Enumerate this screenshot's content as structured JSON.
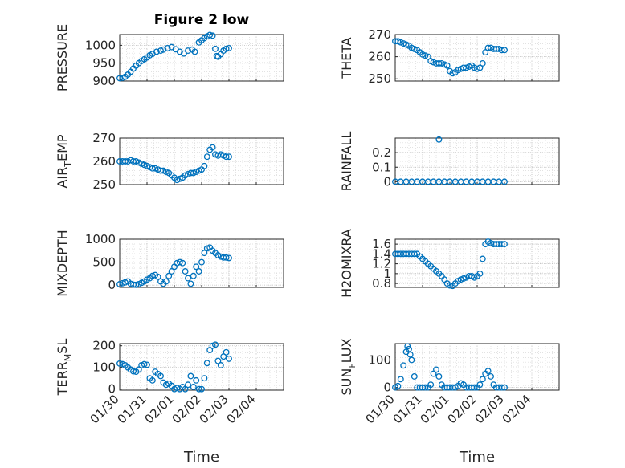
{
  "figure": {
    "title": "Figure 2 low",
    "xlabel": "Time",
    "x_ticks": [
      "01/30",
      "01/31",
      "02/01",
      "02/02",
      "02/03",
      "02/04"
    ],
    "marker_color": "#0072BD"
  },
  "chart_data": [
    {
      "type": "scatter",
      "ylabel": "PRESSURE",
      "ylim": [
        900,
        1030
      ],
      "y_ticks": [
        "900",
        "950",
        "1000"
      ],
      "x_range_days": [
        0,
        6
      ],
      "grid": true,
      "points": [
        [
          0.0,
          908
        ],
        [
          0.1,
          909
        ],
        [
          0.2,
          912
        ],
        [
          0.3,
          918
        ],
        [
          0.4,
          926
        ],
        [
          0.5,
          935
        ],
        [
          0.6,
          943
        ],
        [
          0.7,
          950
        ],
        [
          0.8,
          956
        ],
        [
          0.9,
          961
        ],
        [
          1.0,
          966
        ],
        [
          1.1,
          972
        ],
        [
          1.2,
          976
        ],
        [
          1.35,
          982
        ],
        [
          1.5,
          985
        ],
        [
          1.6,
          988
        ],
        [
          1.75,
          992
        ],
        [
          1.9,
          995
        ],
        [
          2.05,
          989
        ],
        [
          2.2,
          982
        ],
        [
          2.35,
          977
        ],
        [
          2.5,
          985
        ],
        [
          2.65,
          988
        ],
        [
          2.75,
          982
        ],
        [
          2.9,
          1008
        ],
        [
          3.0,
          1014
        ],
        [
          3.1,
          1020
        ],
        [
          3.2,
          1025
        ],
        [
          3.3,
          1029
        ],
        [
          3.4,
          1027
        ],
        [
          3.5,
          990
        ],
        [
          3.55,
          970
        ],
        [
          3.6,
          968
        ],
        [
          3.7,
          975
        ],
        [
          3.8,
          985
        ],
        [
          3.9,
          990
        ],
        [
          4.0,
          992
        ]
      ]
    },
    {
      "type": "scatter",
      "ylabel": "THETA",
      "ylim": [
        249,
        270
      ],
      "y_ticks": [
        "250",
        "260",
        "270"
      ],
      "x_range_days": [
        0,
        6
      ],
      "grid": true,
      "points": [
        [
          0.0,
          267
        ],
        [
          0.1,
          267
        ],
        [
          0.2,
          266.5
        ],
        [
          0.3,
          266
        ],
        [
          0.4,
          265.5
        ],
        [
          0.5,
          265
        ],
        [
          0.6,
          264
        ],
        [
          0.7,
          263.5
        ],
        [
          0.8,
          263
        ],
        [
          0.9,
          262
        ],
        [
          1.0,
          261
        ],
        [
          1.1,
          260.5
        ],
        [
          1.2,
          260
        ],
        [
          1.3,
          258
        ],
        [
          1.4,
          257.5
        ],
        [
          1.5,
          257
        ],
        [
          1.6,
          257
        ],
        [
          1.7,
          257
        ],
        [
          1.8,
          256.5
        ],
        [
          1.9,
          256
        ],
        [
          2.0,
          253.5
        ],
        [
          2.1,
          252.5
        ],
        [
          2.2,
          253
        ],
        [
          2.3,
          254
        ],
        [
          2.4,
          254.5
        ],
        [
          2.5,
          255
        ],
        [
          2.6,
          255
        ],
        [
          2.7,
          255.5
        ],
        [
          2.8,
          256
        ],
        [
          2.9,
          255
        ],
        [
          3.0,
          254.5
        ],
        [
          3.1,
          255
        ],
        [
          3.2,
          257
        ],
        [
          3.3,
          262
        ],
        [
          3.4,
          264
        ],
        [
          3.5,
          264
        ],
        [
          3.6,
          263.5
        ],
        [
          3.7,
          263.5
        ],
        [
          3.8,
          263.5
        ],
        [
          3.9,
          263
        ],
        [
          4.0,
          263
        ]
      ]
    },
    {
      "type": "scatter",
      "ylabel": "AIR",
      "ylabel_sub": "T",
      "ylabel_tail": "EMP",
      "ylim": [
        250,
        270
      ],
      "y_ticks": [
        "250",
        "260",
        "270"
      ],
      "x_range_days": [
        0,
        6
      ],
      "grid": true,
      "points": [
        [
          0.0,
          260
        ],
        [
          0.1,
          260
        ],
        [
          0.2,
          260
        ],
        [
          0.3,
          260
        ],
        [
          0.4,
          260.5
        ],
        [
          0.5,
          260
        ],
        [
          0.6,
          260
        ],
        [
          0.7,
          259.5
        ],
        [
          0.8,
          259
        ],
        [
          0.9,
          258.5
        ],
        [
          1.0,
          258
        ],
        [
          1.1,
          257.5
        ],
        [
          1.2,
          257
        ],
        [
          1.3,
          257
        ],
        [
          1.4,
          256.5
        ],
        [
          1.5,
          256
        ],
        [
          1.6,
          256
        ],
        [
          1.7,
          255.5
        ],
        [
          1.8,
          255
        ],
        [
          1.9,
          254
        ],
        [
          2.0,
          253
        ],
        [
          2.1,
          252
        ],
        [
          2.2,
          252.5
        ],
        [
          2.3,
          253
        ],
        [
          2.4,
          254
        ],
        [
          2.5,
          254.5
        ],
        [
          2.6,
          255
        ],
        [
          2.7,
          255
        ],
        [
          2.8,
          255.5
        ],
        [
          2.9,
          256
        ],
        [
          3.0,
          256.5
        ],
        [
          3.1,
          258
        ],
        [
          3.2,
          262
        ],
        [
          3.3,
          265
        ],
        [
          3.4,
          266
        ],
        [
          3.5,
          263
        ],
        [
          3.6,
          262.5
        ],
        [
          3.7,
          263
        ],
        [
          3.8,
          262.5
        ],
        [
          3.9,
          262
        ],
        [
          4.0,
          262
        ]
      ]
    },
    {
      "type": "scatter",
      "ylabel": "RAINFALL",
      "ylim": [
        -0.02,
        0.3
      ],
      "y_ticks": [
        "0",
        "0.1",
        "0.2"
      ],
      "x_range_days": [
        0,
        6
      ],
      "grid": true,
      "points": [
        [
          0.0,
          0
        ],
        [
          0.2,
          0
        ],
        [
          0.4,
          0
        ],
        [
          0.6,
          0
        ],
        [
          0.8,
          0
        ],
        [
          1.0,
          0
        ],
        [
          1.2,
          0
        ],
        [
          1.4,
          0
        ],
        [
          1.6,
          0
        ],
        [
          1.8,
          0
        ],
        [
          2.0,
          0
        ],
        [
          2.2,
          0
        ],
        [
          2.4,
          0
        ],
        [
          2.6,
          0
        ],
        [
          2.8,
          0
        ],
        [
          3.0,
          0
        ],
        [
          3.2,
          0
        ],
        [
          3.4,
          0
        ],
        [
          3.6,
          0
        ],
        [
          3.8,
          0
        ],
        [
          4.0,
          0
        ],
        [
          1.6,
          0.29
        ]
      ]
    },
    {
      "type": "scatter",
      "ylabel": "MIXDEPTH",
      "ylim": [
        -50,
        1000
      ],
      "y_ticks": [
        "0",
        "500",
        "1000"
      ],
      "x_range_days": [
        0,
        6
      ],
      "grid": true,
      "points": [
        [
          0.0,
          20
        ],
        [
          0.1,
          40
        ],
        [
          0.2,
          60
        ],
        [
          0.3,
          80
        ],
        [
          0.4,
          30
        ],
        [
          0.5,
          10
        ],
        [
          0.6,
          5
        ],
        [
          0.7,
          20
        ],
        [
          0.8,
          50
        ],
        [
          0.9,
          80
        ],
        [
          1.0,
          120
        ],
        [
          1.1,
          150
        ],
        [
          1.2,
          200
        ],
        [
          1.3,
          220
        ],
        [
          1.4,
          180
        ],
        [
          1.5,
          80
        ],
        [
          1.6,
          30
        ],
        [
          1.7,
          80
        ],
        [
          1.8,
          200
        ],
        [
          1.9,
          300
        ],
        [
          2.0,
          400
        ],
        [
          2.1,
          480
        ],
        [
          2.2,
          500
        ],
        [
          2.3,
          480
        ],
        [
          2.4,
          300
        ],
        [
          2.5,
          150
        ],
        [
          2.6,
          30
        ],
        [
          2.7,
          200
        ],
        [
          2.8,
          400
        ],
        [
          2.9,
          300
        ],
        [
          3.0,
          500
        ],
        [
          3.1,
          700
        ],
        [
          3.2,
          800
        ],
        [
          3.3,
          820
        ],
        [
          3.4,
          750
        ],
        [
          3.5,
          700
        ],
        [
          3.6,
          650
        ],
        [
          3.7,
          620
        ],
        [
          3.8,
          600
        ],
        [
          3.9,
          600
        ],
        [
          4.0,
          590
        ]
      ]
    },
    {
      "type": "scatter",
      "ylabel": "H2OMIXRA",
      "ylim": [
        0.72,
        1.7
      ],
      "y_ticks": [
        "0.8",
        "1",
        "1.2",
        "1.4",
        "1.6"
      ],
      "x_range_days": [
        0,
        6
      ],
      "grid": true,
      "points": [
        [
          0.0,
          1.4
        ],
        [
          0.1,
          1.4
        ],
        [
          0.2,
          1.4
        ],
        [
          0.3,
          1.4
        ],
        [
          0.4,
          1.4
        ],
        [
          0.5,
          1.4
        ],
        [
          0.6,
          1.4
        ],
        [
          0.7,
          1.4
        ],
        [
          0.8,
          1.4
        ],
        [
          0.9,
          1.35
        ],
        [
          1.0,
          1.3
        ],
        [
          1.1,
          1.25
        ],
        [
          1.2,
          1.2
        ],
        [
          1.3,
          1.15
        ],
        [
          1.4,
          1.1
        ],
        [
          1.5,
          1.05
        ],
        [
          1.6,
          1.0
        ],
        [
          1.7,
          0.95
        ],
        [
          1.8,
          0.88
        ],
        [
          1.9,
          0.8
        ],
        [
          2.0,
          0.76
        ],
        [
          2.1,
          0.75
        ],
        [
          2.2,
          0.8
        ],
        [
          2.3,
          0.85
        ],
        [
          2.4,
          0.88
        ],
        [
          2.5,
          0.9
        ],
        [
          2.6,
          0.92
        ],
        [
          2.7,
          0.95
        ],
        [
          2.8,
          0.95
        ],
        [
          2.9,
          0.92
        ],
        [
          3.0,
          0.95
        ],
        [
          3.1,
          1.0
        ],
        [
          3.2,
          1.3
        ],
        [
          3.3,
          1.6
        ],
        [
          3.4,
          1.65
        ],
        [
          3.5,
          1.62
        ],
        [
          3.6,
          1.6
        ],
        [
          3.7,
          1.6
        ],
        [
          3.8,
          1.6
        ],
        [
          3.9,
          1.6
        ],
        [
          4.0,
          1.6
        ]
      ]
    },
    {
      "type": "scatter",
      "ylabel": "TERR",
      "ylabel_sub": "M",
      "ylabel_tail": "SL",
      "ylim": [
        -5,
        210
      ],
      "y_ticks": [
        "0",
        "100",
        "200"
      ],
      "x_range_days": [
        0,
        6
      ],
      "grid": true,
      "points": [
        [
          0.0,
          118
        ],
        [
          0.1,
          115
        ],
        [
          0.2,
          110
        ],
        [
          0.3,
          100
        ],
        [
          0.4,
          90
        ],
        [
          0.5,
          82
        ],
        [
          0.6,
          80
        ],
        [
          0.7,
          90
        ],
        [
          0.8,
          110
        ],
        [
          0.9,
          115
        ],
        [
          1.0,
          112
        ],
        [
          1.1,
          50
        ],
        [
          1.2,
          40
        ],
        [
          1.3,
          80
        ],
        [
          1.4,
          70
        ],
        [
          1.5,
          60
        ],
        [
          1.6,
          30
        ],
        [
          1.7,
          20
        ],
        [
          1.8,
          25
        ],
        [
          1.9,
          15
        ],
        [
          2.0,
          0
        ],
        [
          2.1,
          5
        ],
        [
          2.2,
          0
        ],
        [
          2.3,
          10
        ],
        [
          2.4,
          0
        ],
        [
          2.5,
          20
        ],
        [
          2.6,
          60
        ],
        [
          2.7,
          10
        ],
        [
          2.8,
          40
        ],
        [
          2.9,
          0
        ],
        [
          3.0,
          0
        ],
        [
          3.1,
          50
        ],
        [
          3.2,
          120
        ],
        [
          3.3,
          180
        ],
        [
          3.4,
          200
        ],
        [
          3.5,
          205
        ],
        [
          3.6,
          130
        ],
        [
          3.7,
          110
        ],
        [
          3.8,
          150
        ],
        [
          3.9,
          170
        ],
        [
          4.0,
          140
        ]
      ]
    },
    {
      "type": "scatter",
      "ylabel": "SUN",
      "ylabel_sub": "F",
      "ylabel_tail": "LUX",
      "ylim": [
        -10,
        160
      ],
      "y_ticks": [
        "0",
        "100"
      ],
      "x_range_days": [
        0,
        6
      ],
      "grid": true,
      "points": [
        [
          0.0,
          0
        ],
        [
          0.1,
          5
        ],
        [
          0.2,
          30
        ],
        [
          0.3,
          80
        ],
        [
          0.4,
          130
        ],
        [
          0.45,
          150
        ],
        [
          0.5,
          140
        ],
        [
          0.55,
          120
        ],
        [
          0.6,
          100
        ],
        [
          0.7,
          40
        ],
        [
          0.8,
          0
        ],
        [
          0.9,
          0
        ],
        [
          1.0,
          0
        ],
        [
          1.1,
          0
        ],
        [
          1.2,
          0
        ],
        [
          1.3,
          10
        ],
        [
          1.4,
          50
        ],
        [
          1.5,
          65
        ],
        [
          1.6,
          40
        ],
        [
          1.7,
          10
        ],
        [
          1.8,
          0
        ],
        [
          1.9,
          0
        ],
        [
          2.0,
          0
        ],
        [
          2.1,
          0
        ],
        [
          2.2,
          0
        ],
        [
          2.3,
          5
        ],
        [
          2.4,
          15
        ],
        [
          2.5,
          10
        ],
        [
          2.6,
          0
        ],
        [
          2.7,
          0
        ],
        [
          2.8,
          0
        ],
        [
          2.9,
          0
        ],
        [
          3.0,
          0
        ],
        [
          3.1,
          10
        ],
        [
          3.2,
          30
        ],
        [
          3.3,
          50
        ],
        [
          3.4,
          60
        ],
        [
          3.5,
          40
        ],
        [
          3.6,
          10
        ],
        [
          3.7,
          0
        ],
        [
          3.8,
          0
        ],
        [
          3.9,
          0
        ],
        [
          4.0,
          0
        ]
      ]
    }
  ]
}
